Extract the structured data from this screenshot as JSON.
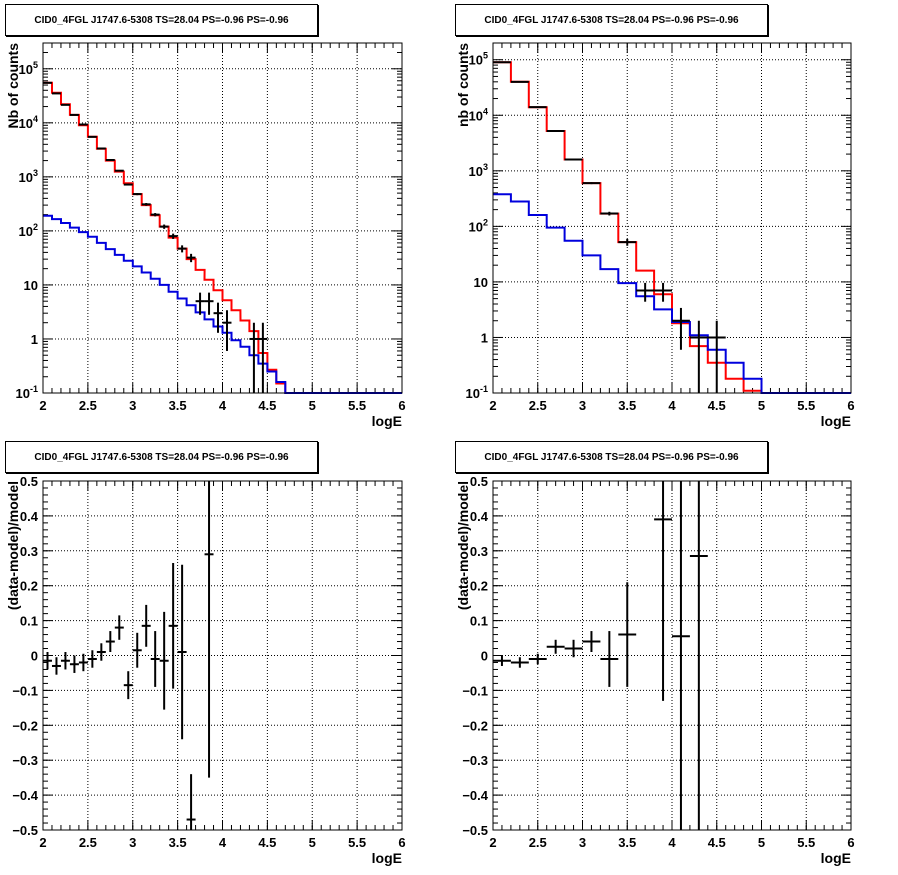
{
  "chart_data": [
    {
      "type": "line",
      "title": "CID0_4FGL J1747.6-5308 TS=28.04 PS=-0.96 PS=-0.96",
      "xlabel": "logE",
      "ylabel": "Nb of counts",
      "xlim": [
        2,
        6
      ],
      "ylim": [
        0.1,
        300000
      ],
      "ylog": true,
      "grid": true,
      "x_ticks": [
        "2",
        "2.5",
        "3",
        "3.5",
        "4",
        "4.5",
        "5",
        "5.5",
        "6"
      ],
      "y_ticks": [
        "10^-1",
        "1",
        "10",
        "10^2",
        "10^3",
        "10^4",
        "10^5"
      ],
      "bin_width": 0.1,
      "series": [
        {
          "color": "#ff0000",
          "style": "step",
          "x": [
            2.0,
            2.1,
            2.2,
            2.3,
            2.4,
            2.5,
            2.6,
            2.7,
            2.8,
            2.9,
            3.0,
            3.1,
            3.2,
            3.3,
            3.4,
            3.5,
            3.6,
            3.7,
            3.8,
            3.9,
            4.0,
            4.1,
            4.2,
            4.3,
            4.4,
            4.5,
            4.6,
            4.7,
            4.8,
            4.9,
            5.0,
            5.1,
            5.2,
            5.3,
            5.4,
            5.5,
            5.6,
            5.7,
            5.8,
            5.9
          ],
          "values": [
            55000,
            36000,
            22000,
            14000,
            9000,
            5500,
            3300,
            2000,
            1250,
            760,
            480,
            300,
            195,
            120,
            75,
            47,
            30,
            19,
            12.5,
            8,
            5.2,
            3.4,
            2.2,
            1.4,
            0.55,
            0.27,
            0.15,
            0.1,
            0.1,
            0.1,
            0.1,
            0.1,
            0.1,
            0.1,
            0.1,
            0.1,
            0.1,
            0.1,
            0.1,
            0.1
          ]
        },
        {
          "color": "#0000dd",
          "style": "step",
          "x": [
            2.0,
            2.1,
            2.2,
            2.3,
            2.4,
            2.5,
            2.6,
            2.7,
            2.8,
            2.9,
            3.0,
            3.1,
            3.2,
            3.3,
            3.4,
            3.5,
            3.6,
            3.7,
            3.8,
            3.9,
            4.0,
            4.1,
            4.2,
            4.3,
            4.4,
            4.5,
            4.6,
            4.7,
            4.8,
            4.9,
            5.0,
            5.1,
            5.2,
            5.3,
            5.4,
            5.5,
            5.6,
            5.7,
            5.8,
            5.9
          ],
          "values": [
            190,
            165,
            140,
            115,
            95,
            78,
            60,
            46,
            36,
            28,
            22,
            17,
            13,
            10,
            7.5,
            5.6,
            4.2,
            3.1,
            2.3,
            1.7,
            1.3,
            0.95,
            0.72,
            0.5,
            0.35,
            0.25,
            0.16,
            0.1,
            0.1,
            0.1,
            0.1,
            0.1,
            0.1,
            0.1,
            0.1,
            0.1,
            0.1,
            0.1,
            0.1,
            0.1
          ]
        },
        {
          "color": "#000000",
          "style": "errorbar",
          "x": [
            2.05,
            2.15,
            2.25,
            2.35,
            2.45,
            2.55,
            2.65,
            2.75,
            2.85,
            2.95,
            3.05,
            3.15,
            3.25,
            3.35,
            3.45,
            3.55,
            3.65,
            3.75,
            3.85,
            3.95,
            4.05,
            4.35,
            4.45
          ],
          "values": [
            55000,
            35000,
            21500,
            14000,
            9300,
            5500,
            3350,
            2050,
            1300,
            720,
            480,
            310,
            200,
            120,
            80,
            47,
            32,
            5,
            5,
            3,
            2,
            1,
            1
          ],
          "err_low": [
            235,
            187,
            147,
            118,
            96,
            74,
            58,
            45,
            36,
            27,
            22,
            18,
            14,
            11,
            9,
            7,
            5.6,
            2.2,
            2.2,
            1.7,
            1.4,
            1,
            1
          ],
          "err_high": [
            235,
            187,
            147,
            118,
            96,
            74,
            58,
            45,
            36,
            27,
            22,
            18,
            14,
            11,
            9,
            7,
            5.6,
            2.2,
            2.2,
            1.7,
            1.4,
            1,
            1
          ]
        }
      ]
    },
    {
      "type": "line",
      "title": "CID0_4FGL J1747.6-5308 TS=28.04 PS=-0.96 PS=-0.96",
      "xlabel": "logE",
      "ylabel": "nb of counts",
      "xlim": [
        2,
        6
      ],
      "ylim": [
        0.1,
        200000
      ],
      "ylog": true,
      "grid": true,
      "x_ticks": [
        "2",
        "2.5",
        "3",
        "3.5",
        "4",
        "4.5",
        "5",
        "5.5",
        "6"
      ],
      "y_ticks": [
        "10^-1",
        "1",
        "10",
        "10^2",
        "10^3",
        "10^4",
        "10^5"
      ],
      "bin_width": 0.2,
      "series": [
        {
          "color": "#ff0000",
          "style": "step",
          "x": [
            2.0,
            2.2,
            2.4,
            2.6,
            2.8,
            3.0,
            3.2,
            3.4,
            3.6,
            3.8,
            4.0,
            4.2,
            4.4,
            4.6,
            4.8,
            5.0,
            5.2,
            5.4,
            5.6,
            5.8
          ],
          "values": [
            90000,
            40000,
            14000,
            5200,
            1600,
            600,
            170,
            52,
            16,
            6,
            1.8,
            0.7,
            0.35,
            0.18,
            0.11,
            0.1,
            0.1,
            0.1,
            0.1,
            0.1
          ]
        },
        {
          "color": "#0000dd",
          "style": "step",
          "x": [
            2.0,
            2.2,
            2.4,
            2.6,
            2.8,
            3.0,
            3.2,
            3.4,
            3.6,
            3.8,
            4.0,
            4.2,
            4.4,
            4.6,
            4.8,
            5.0,
            5.2,
            5.4,
            5.6,
            5.8
          ],
          "values": [
            380,
            280,
            160,
            95,
            55,
            30,
            17,
            9.5,
            5.5,
            3.2,
            1.9,
            1.1,
            0.6,
            0.35,
            0.18,
            0.1,
            0.1,
            0.1,
            0.1,
            0.1
          ]
        },
        {
          "color": "#000000",
          "style": "errorbar",
          "x": [
            2.1,
            2.3,
            2.5,
            2.7,
            2.9,
            3.1,
            3.3,
            3.5,
            3.7,
            3.9,
            4.1,
            4.3,
            4.5
          ],
          "values": [
            90000,
            40000,
            14000,
            5200,
            1600,
            600,
            170,
            52,
            7,
            7,
            2,
            1,
            1
          ],
          "err_low": [
            300,
            200,
            118,
            72,
            40,
            24,
            13,
            7.2,
            2.6,
            2.6,
            1.4,
            1,
            1
          ],
          "err_high": [
            300,
            200,
            118,
            72,
            40,
            24,
            13,
            7.2,
            2.6,
            2.6,
            1.4,
            1,
            1
          ]
        }
      ]
    },
    {
      "type": "scatter",
      "title": "CID0_4FGL J1747.6-5308 TS=28.04 PS=-0.96 PS=-0.96",
      "xlabel": "logE",
      "ylabel": "(data-model)/model",
      "xlim": [
        2,
        6
      ],
      "ylim": [
        -0.5,
        0.5
      ],
      "grid": true,
      "x_ticks": [
        "2",
        "2.5",
        "3",
        "3.5",
        "4",
        "4.5",
        "5",
        "5.5",
        "6"
      ],
      "y_ticks": [
        "-0.5",
        "-0.4",
        "-0.3",
        "-0.2",
        "-0.1",
        "0",
        "0.1",
        "0.2",
        "0.3",
        "0.4",
        "0.5"
      ],
      "bin_width": 0.1,
      "series": [
        {
          "color": "#000000",
          "style": "errorbar",
          "x": [
            2.05,
            2.15,
            2.25,
            2.35,
            2.45,
            2.55,
            2.65,
            2.75,
            2.85,
            2.95,
            3.05,
            3.15,
            3.25,
            3.35,
            3.45,
            3.55,
            3.65,
            3.85
          ],
          "values": [
            -0.015,
            -0.03,
            -0.015,
            -0.025,
            -0.02,
            -0.01,
            0.01,
            0.04,
            0.08,
            -0.085,
            0.015,
            0.085,
            -0.01,
            -0.015,
            0.085,
            0.01,
            -0.47,
            0.29
          ],
          "err_low": [
            0.025,
            0.025,
            0.025,
            0.025,
            0.025,
            0.025,
            0.025,
            0.03,
            0.035,
            0.04,
            0.05,
            0.06,
            0.08,
            0.14,
            0.18,
            0.25,
            0.13,
            0.64
          ],
          "err_high": [
            0.025,
            0.025,
            0.025,
            0.025,
            0.025,
            0.025,
            0.025,
            0.03,
            0.035,
            0.04,
            0.05,
            0.06,
            0.08,
            0.14,
            0.18,
            0.25,
            0.13,
            0.64
          ]
        }
      ]
    },
    {
      "type": "scatter",
      "title": "CID0_4FGL J1747.6-5308 TS=28.04 PS=-0.96 PS=-0.96",
      "xlabel": "logE",
      "ylabel": "(data-model)/model",
      "xlim": [
        2,
        6
      ],
      "ylim": [
        -0.5,
        0.5
      ],
      "grid": true,
      "x_ticks": [
        "2",
        "2.5",
        "3",
        "3.5",
        "4",
        "4.5",
        "5",
        "5.5",
        "6"
      ],
      "y_ticks": [
        "-0.5",
        "-0.4",
        "-0.3",
        "-0.2",
        "-0.1",
        "0",
        "0.1",
        "0.2",
        "0.3",
        "0.4",
        "0.5"
      ],
      "bin_width": 0.2,
      "series": [
        {
          "color": "#000000",
          "style": "errorbar",
          "x": [
            2.1,
            2.3,
            2.5,
            2.7,
            2.9,
            3.1,
            3.3,
            3.5,
            3.9,
            4.1,
            4.3
          ],
          "values": [
            -0.015,
            -0.02,
            -0.01,
            0.025,
            0.02,
            0.04,
            -0.01,
            0.06,
            0.39,
            0.055,
            0.285
          ],
          "err_low": [
            0.015,
            0.015,
            0.015,
            0.02,
            0.025,
            0.03,
            0.08,
            0.15,
            0.52,
            0.6,
            0.8
          ],
          "err_high": [
            0.015,
            0.015,
            0.015,
            0.02,
            0.025,
            0.03,
            0.08,
            0.15,
            0.52,
            0.6,
            0.8
          ]
        }
      ]
    }
  ]
}
